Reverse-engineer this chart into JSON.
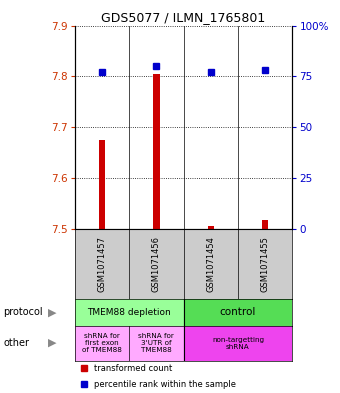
{
  "title": "GDS5077 / ILMN_1765801",
  "samples": [
    "GSM1071457",
    "GSM1071456",
    "GSM1071454",
    "GSM1071455"
  ],
  "transformed_counts": [
    7.675,
    7.805,
    7.505,
    7.518
  ],
  "percentile_ranks": [
    77,
    80,
    77,
    78
  ],
  "ylim_left": [
    7.5,
    7.9
  ],
  "yticks_left": [
    7.5,
    7.6,
    7.7,
    7.8,
    7.9
  ],
  "ylim_right": [
    0,
    100
  ],
  "yticks_right": [
    0,
    25,
    50,
    75,
    100
  ],
  "ytick_labels_right": [
    "0",
    "25",
    "50",
    "75",
    "100%"
  ],
  "bar_color": "#cc0000",
  "dot_color": "#0000cc",
  "left_tick_color": "#cc3300",
  "right_tick_color": "#0000cc",
  "protocol_colors": [
    "#99ff99",
    "#55dd55"
  ],
  "other_colors_left": "#ffaaff",
  "other_color_right": "#ee44ee",
  "background_label": "#cccccc",
  "protocol_labels": [
    "TMEM88 depletion",
    "control"
  ],
  "other_labels": [
    "shRNA for\nfirst exon\nof TMEM88",
    "shRNA for\n3'UTR of\nTMEM88",
    "non-targetting\nshRNA"
  ]
}
